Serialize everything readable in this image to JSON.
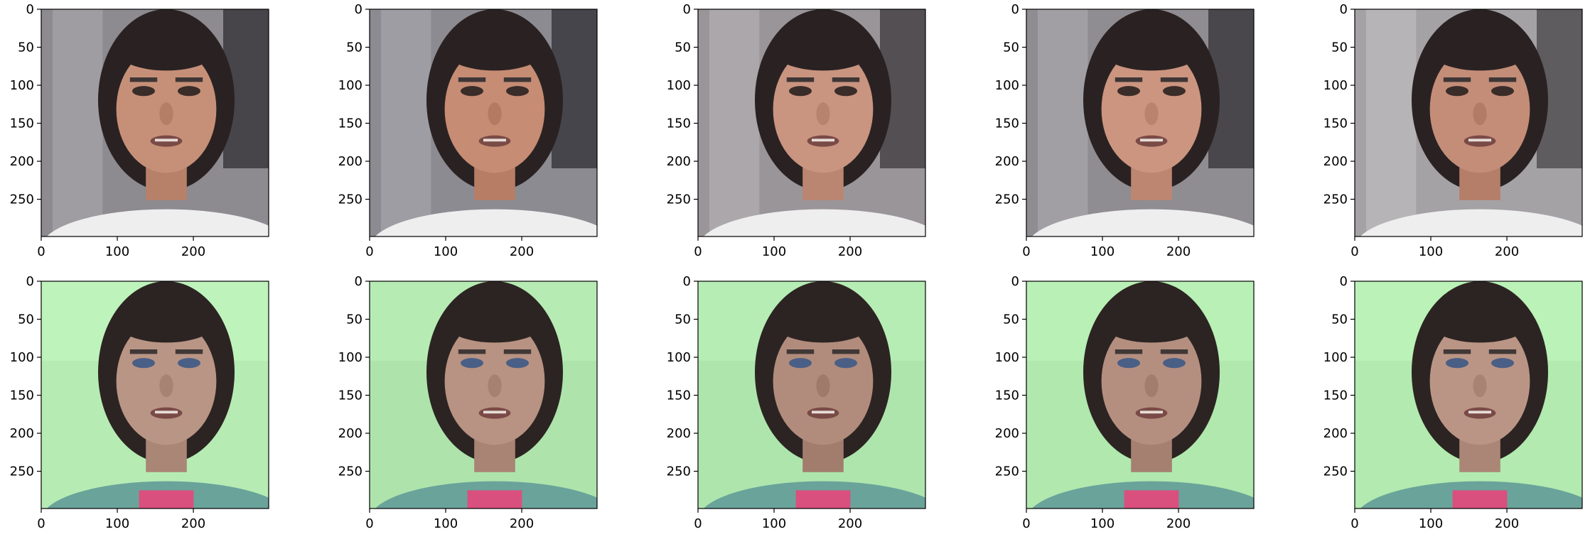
{
  "chart_data": {
    "type": "image_grid",
    "rows": 2,
    "cols": 5,
    "axes": {
      "x_ticks": [
        0,
        100,
        200
      ],
      "y_ticks": [
        0,
        50,
        100,
        150,
        200,
        250
      ],
      "xlim": [
        0,
        299
      ],
      "ylim": [
        299,
        0
      ]
    },
    "panels": [
      {
        "row": 0,
        "col": 0,
        "content": "face-image",
        "subject": "woman-dark-hair-room-background",
        "palette": {
          "bg": "#8d8a90",
          "skin": "#c69078",
          "hair": "#2a2222",
          "shirt": "#eeeeef"
        }
      },
      {
        "row": 0,
        "col": 1,
        "content": "face-image",
        "subject": "woman-dark-hair-room-background",
        "palette": {
          "bg": "#8c8b91",
          "skin": "#c68c74",
          "hair": "#2a2222",
          "shirt": "#eeeeef"
        }
      },
      {
        "row": 0,
        "col": 2,
        "content": "face-image",
        "subject": "woman-dark-hair-room-background",
        "palette": {
          "bg": "#9a9599",
          "skin": "#c99480",
          "hair": "#2a2222",
          "shirt": "#eeeeef"
        }
      },
      {
        "row": 0,
        "col": 3,
        "content": "face-image",
        "subject": "woman-dark-hair-room-background",
        "palette": {
          "bg": "#8f8d92",
          "skin": "#cc957f",
          "hair": "#2a2222",
          "shirt": "#eeeeef"
        }
      },
      {
        "row": 0,
        "col": 4,
        "content": "face-image",
        "subject": "woman-dark-hair-room-background",
        "palette": {
          "bg": "#a5a2a6",
          "skin": "#c48d78",
          "hair": "#2a2222",
          "shirt": "#eeeeef"
        }
      },
      {
        "row": 1,
        "col": 0,
        "content": "face-image",
        "subject": "woman-dark-hair-green-background",
        "palette": {
          "bg": "#b6ecb4",
          "skin": "#b99585",
          "hair": "#2c2422",
          "shirt": "#6aa39a"
        }
      },
      {
        "row": 1,
        "col": 1,
        "content": "face-image",
        "subject": "woman-dark-hair-green-background",
        "palette": {
          "bg": "#aee4ac",
          "skin": "#b89282",
          "hair": "#2c2422",
          "shirt": "#6aa39a"
        }
      },
      {
        "row": 1,
        "col": 2,
        "content": "face-image",
        "subject": "woman-dark-hair-green-background",
        "palette": {
          "bg": "#aee5ad",
          "skin": "#b18c7c",
          "hair": "#2c2422",
          "shirt": "#6aa39a"
        }
      },
      {
        "row": 1,
        "col": 3,
        "content": "face-image",
        "subject": "woman-dark-hair-green-background",
        "palette": {
          "bg": "#b0e8ae",
          "skin": "#b48f80",
          "hair": "#2c2422",
          "shirt": "#6aa39a"
        }
      },
      {
        "row": 1,
        "col": 4,
        "content": "face-image",
        "subject": "woman-dark-hair-green-background",
        "palette": {
          "bg": "#b2eab0",
          "skin": "#ba9585",
          "hair": "#2c2422",
          "shirt": "#6aa39a"
        }
      }
    ]
  }
}
